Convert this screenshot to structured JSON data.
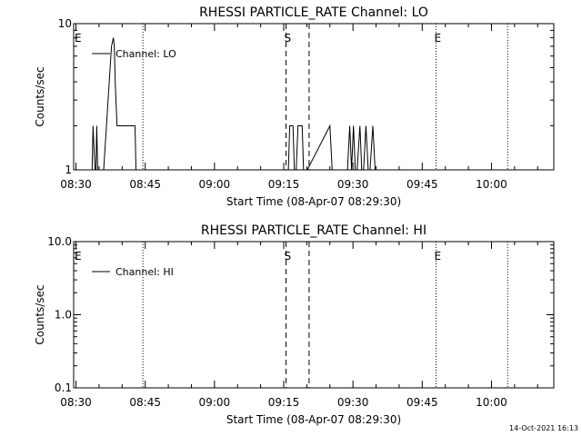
{
  "footer_timestamp": "14-Oct-2021 16:13",
  "chart_data": [
    {
      "type": "line",
      "title": "RHESSI PARTICLE_RATE Channel: LO",
      "xlabel": "Start Time (08-Apr-07 08:29:30)",
      "ylabel": "Counts/sec",
      "yscale": "log",
      "ylim": [
        1,
        10
      ],
      "ytick_values": [
        1,
        10
      ],
      "ytick_labels": [
        "1",
        "10"
      ],
      "xlim": [
        0,
        104
      ],
      "x_unit": "minutes after 08:29:30",
      "xtick_values": [
        0.5,
        15.5,
        30.5,
        45.5,
        60.5,
        75.5,
        90.5
      ],
      "xtick_labels": [
        "08:30",
        "08:45",
        "09:00",
        "09:15",
        "09:30",
        "09:45",
        "10:00"
      ],
      "legend": "Channel: LO",
      "series": [
        {
          "name": "Channel: LO",
          "x": [
            4.0,
            4.2,
            4.6,
            4.8,
            5.0,
            5.2,
            6.5,
            8.2,
            8.6,
            8.8,
            9.0,
            9.4,
            9.8,
            13.3,
            13.5,
            13.8,
            46.5,
            46.8,
            47.5,
            47.8,
            48.2,
            48.6,
            49.5,
            49.8,
            50.3,
            50.6,
            55.5,
            56.0,
            56.5,
            57.5,
            59.3,
            59.8,
            60.2,
            60.6,
            61.0,
            61.4,
            62.0,
            62.4,
            62.8,
            63.3,
            63.8,
            64.2,
            64.8,
            65.3,
            65.8
          ],
          "y": [
            1,
            2,
            1,
            1,
            2,
            1,
            1,
            7,
            8,
            7,
            4,
            2,
            2,
            2,
            1,
            1,
            1,
            2,
            2,
            1,
            1,
            2,
            2,
            1,
            1,
            1,
            2,
            1,
            1,
            1,
            1,
            2,
            1,
            2,
            1,
            1,
            2,
            1,
            1,
            2,
            1,
            1,
            2,
            1,
            1
          ]
        }
      ],
      "markers": [
        {
          "label": "E",
          "x": 0.0,
          "style": "dotted"
        },
        {
          "label": "",
          "x": 15.0,
          "style": "dotted"
        },
        {
          "label": "S",
          "x": 46.0,
          "style": "dashed"
        },
        {
          "label": "",
          "x": 51.0,
          "style": "dashed"
        },
        {
          "label": "E",
          "x": 78.5,
          "style": "dotted"
        },
        {
          "label": "",
          "x": 94.0,
          "style": "dotted"
        }
      ]
    },
    {
      "type": "line",
      "title": "RHESSI PARTICLE_RATE Channel: HI",
      "xlabel": "Start Time (08-Apr-07 08:29:30)",
      "ylabel": "Counts/sec",
      "yscale": "log",
      "ylim": [
        0.1,
        10
      ],
      "ytick_values": [
        0.1,
        1,
        10
      ],
      "ytick_labels": [
        "0.1",
        "1.0",
        "10.0"
      ],
      "xlim": [
        0,
        104
      ],
      "x_unit": "minutes after 08:29:30",
      "xtick_values": [
        0.5,
        15.5,
        30.5,
        45.5,
        60.5,
        75.5,
        90.5
      ],
      "xtick_labels": [
        "08:30",
        "08:45",
        "09:00",
        "09:15",
        "09:30",
        "09:45",
        "10:00"
      ],
      "legend": "Channel: HI",
      "series": [
        {
          "name": "Channel: HI",
          "x": [],
          "y": []
        }
      ],
      "markers": [
        {
          "label": "E",
          "x": 0.0,
          "style": "dotted"
        },
        {
          "label": "",
          "x": 15.0,
          "style": "dotted"
        },
        {
          "label": "S",
          "x": 46.0,
          "style": "dashed"
        },
        {
          "label": "",
          "x": 51.0,
          "style": "dashed"
        },
        {
          "label": "E",
          "x": 78.5,
          "style": "dotted"
        },
        {
          "label": "",
          "x": 94.0,
          "style": "dotted"
        }
      ]
    }
  ]
}
